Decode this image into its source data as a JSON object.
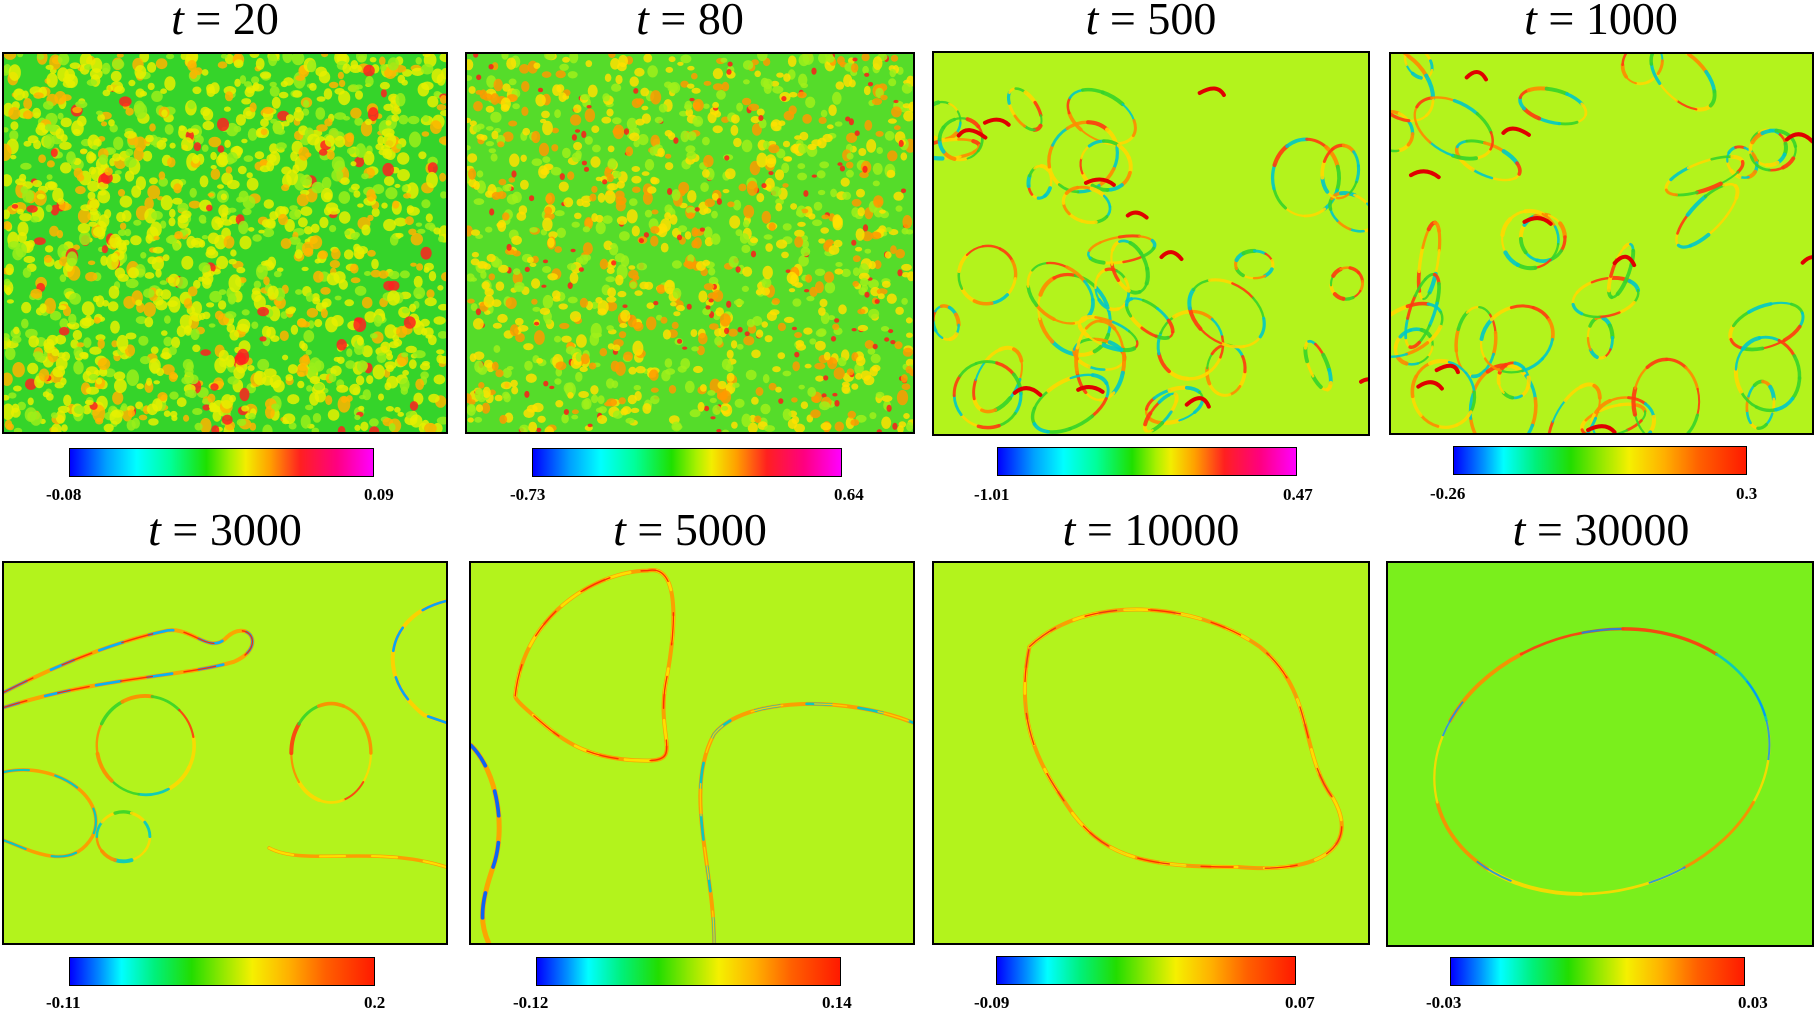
{
  "figure": {
    "panels": [
      {
        "var": "t",
        "eq": "=",
        "time": "20",
        "cmin": "-0.08",
        "cmax": "0.09",
        "texture": "dense",
        "background": "#35d42a",
        "colorbar": "magenta"
      },
      {
        "var": "t",
        "eq": "=",
        "time": "80",
        "cmin": "-0.73",
        "cmax": "0.64",
        "texture": "dense-red",
        "background": "#55dc2a",
        "colorbar": "magenta"
      },
      {
        "var": "t",
        "eq": "=",
        "time": "500",
        "cmin": "-1.01",
        "cmax": "0.47",
        "texture": "loops",
        "background": "#b3f31c",
        "colorbar": "magenta"
      },
      {
        "var": "t",
        "eq": "=",
        "time": "1000",
        "cmin": "-0.26",
        "cmax": "0.3",
        "texture": "loops",
        "background": "#b3f31c",
        "colorbar": "red"
      },
      {
        "var": "t",
        "eq": "=",
        "time": "3000",
        "cmin": "-0.11",
        "cmax": "0.2",
        "texture": "t3000",
        "background": "#b3f31c",
        "colorbar": "red"
      },
      {
        "var": "t",
        "eq": "=",
        "time": "5000",
        "cmin": "-0.12",
        "cmax": "0.14",
        "texture": "t5000",
        "background": "#b3f31c",
        "colorbar": "red"
      },
      {
        "var": "t",
        "eq": "=",
        "time": "10000",
        "cmin": "-0.09",
        "cmax": "0.07",
        "texture": "t10000",
        "background": "#b3f31c",
        "colorbar": "red"
      },
      {
        "var": "t",
        "eq": "=",
        "time": "30000",
        "cmin": "-0.03",
        "cmax": "0.03",
        "texture": "t30000",
        "background": "#7aef1c",
        "colorbar": "red"
      }
    ]
  }
}
